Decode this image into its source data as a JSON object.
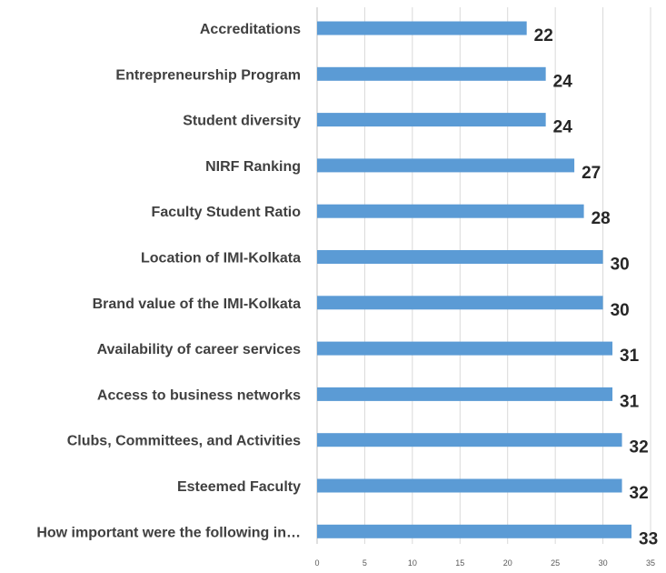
{
  "chart_data": {
    "type": "bar",
    "orientation": "horizontal",
    "categories": [
      "Accreditations",
      "Entrepreneurship Program",
      "Student diversity",
      "NIRF Ranking",
      "Faculty Student Ratio",
      "Location of IMI-Kolkata",
      "Brand value of the IMI-Kolkata",
      "Availability of career services",
      "Access to business networks",
      "Clubs, Committees, and Activities",
      "Esteemed Faculty",
      "How important were the following in…"
    ],
    "values": [
      22,
      24,
      24,
      27,
      28,
      30,
      30,
      31,
      31,
      32,
      32,
      33
    ],
    "xlim": [
      0,
      35
    ],
    "xticks": [
      "0",
      "5",
      "10",
      "15",
      "20",
      "25",
      "30",
      "35"
    ],
    "grid": true,
    "bar_color": "#5b9bd5",
    "title": "",
    "xlabel": "",
    "ylabel": ""
  }
}
